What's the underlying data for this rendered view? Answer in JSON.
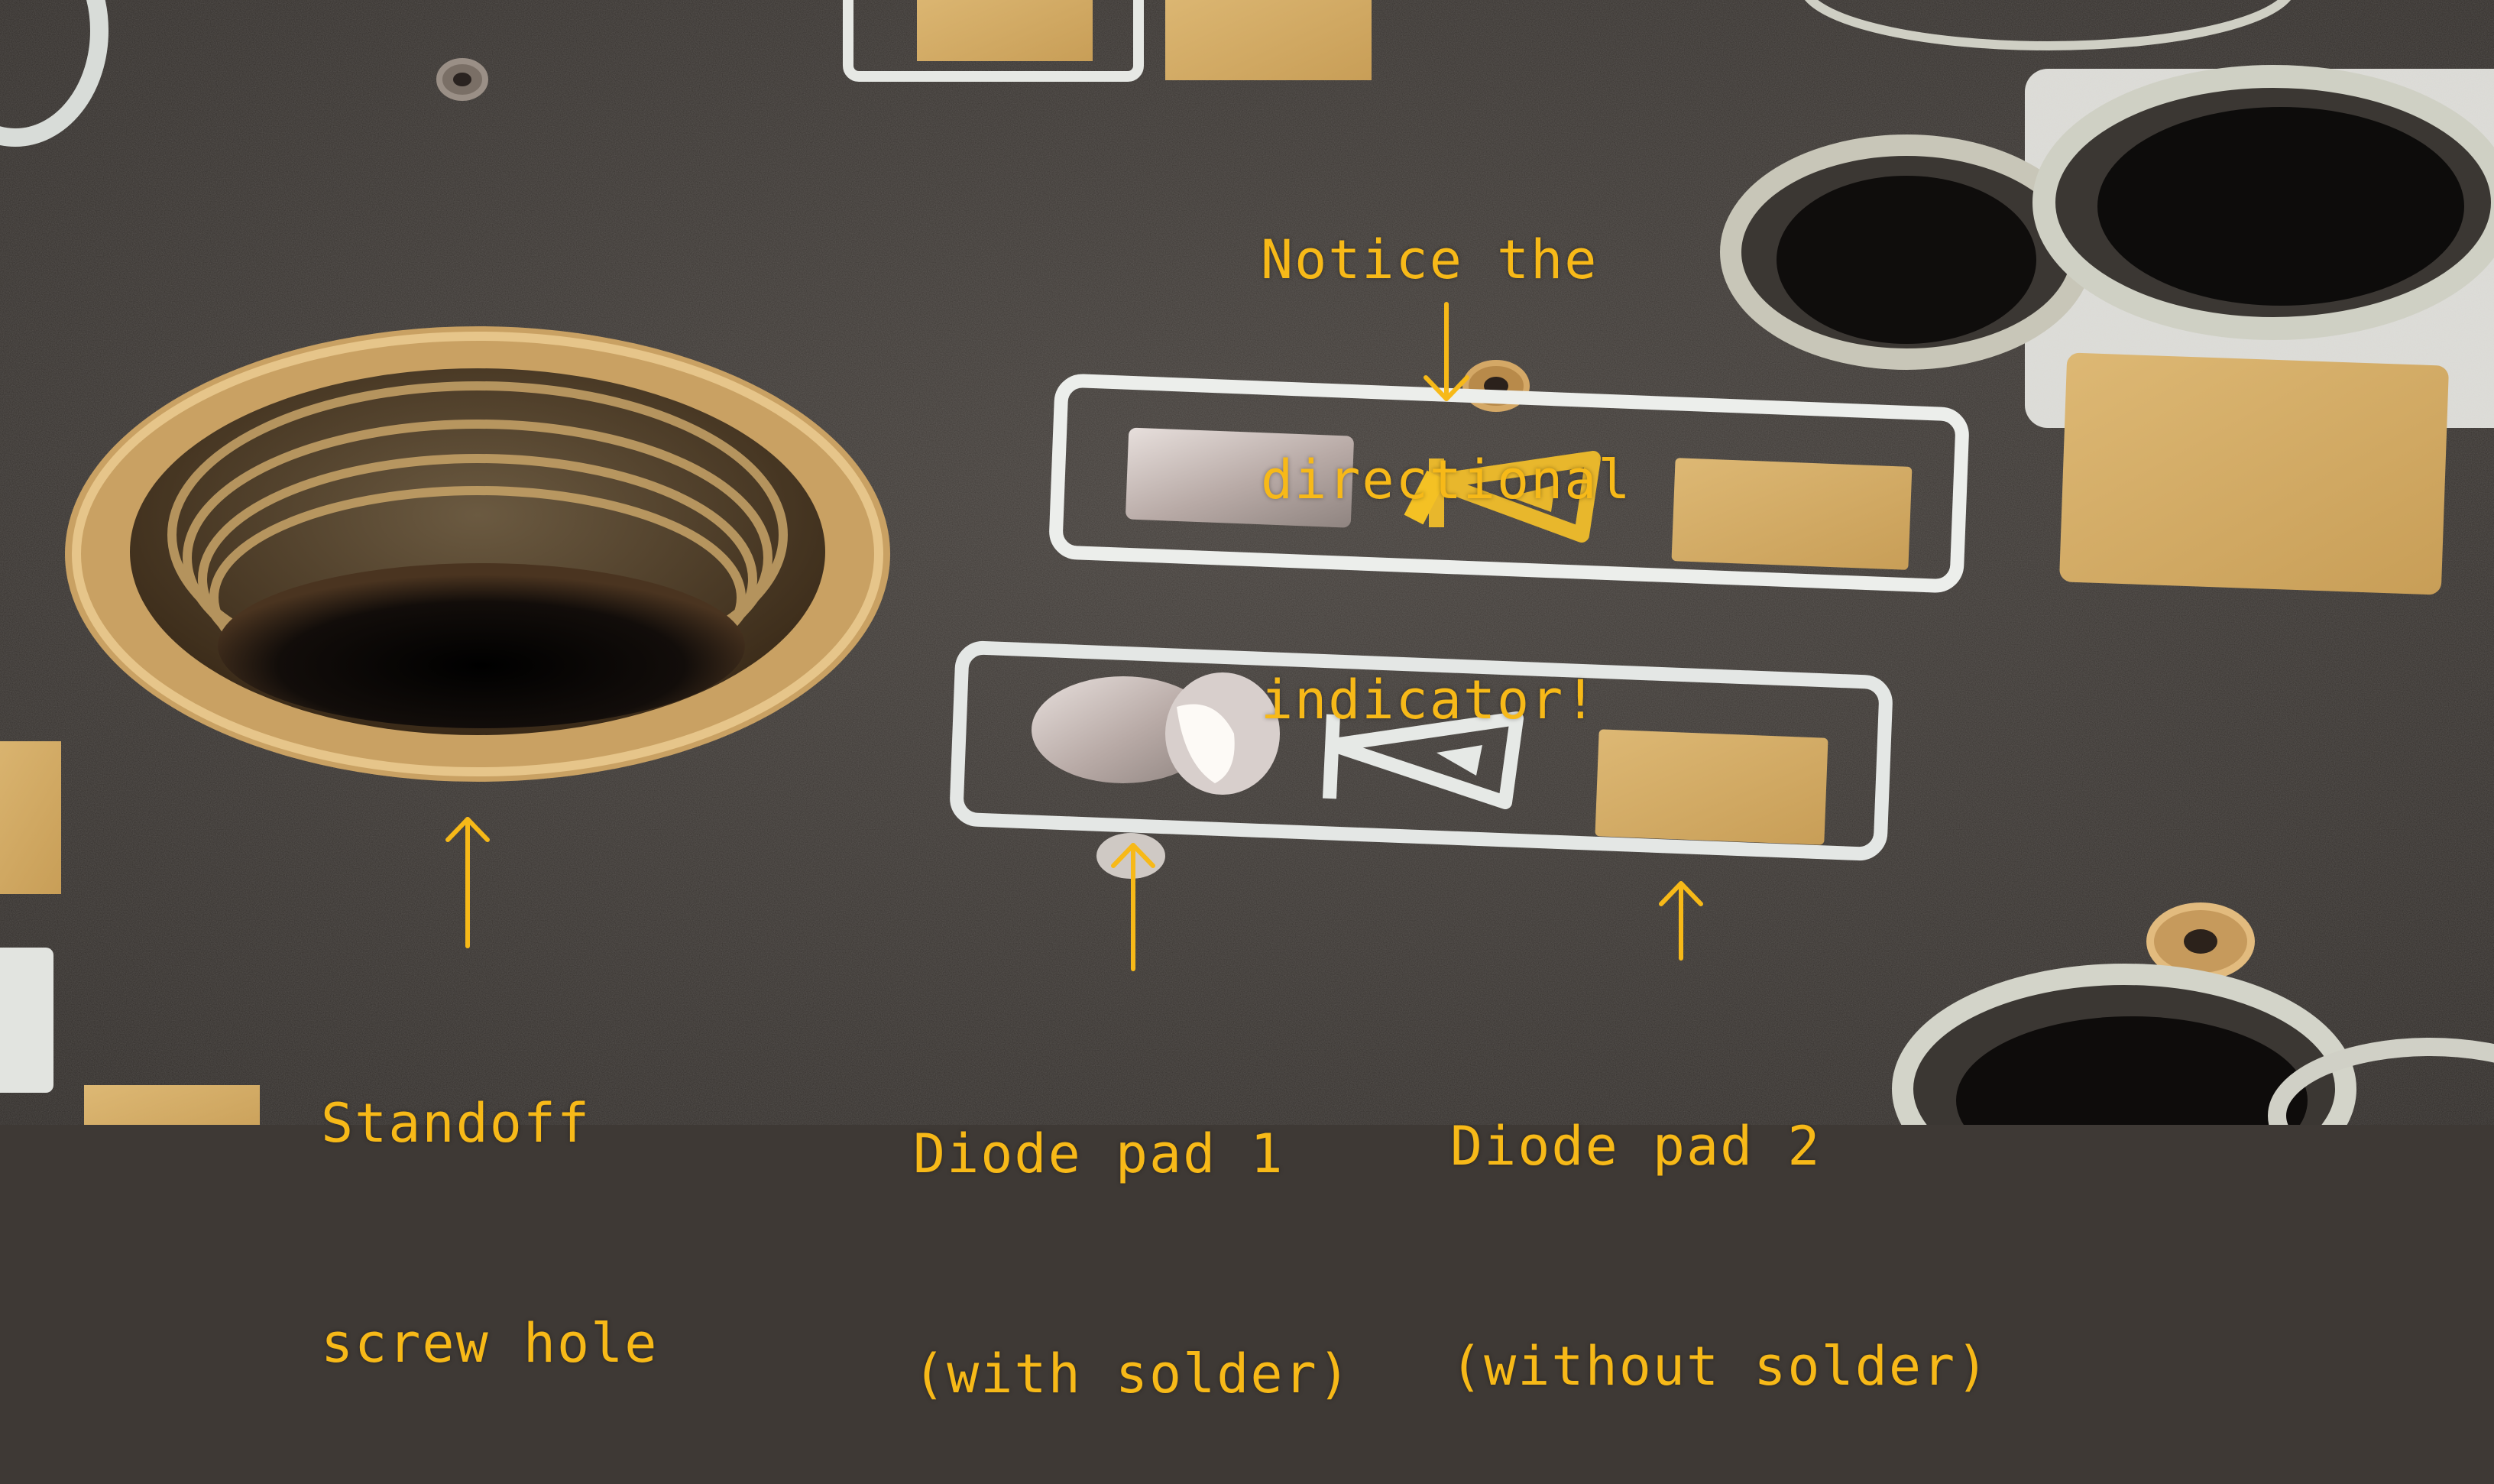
{
  "image": {
    "description_colors": {
      "board": "#3e3935",
      "silkscreen": "#e4e6e2",
      "gold": "#d8b56f",
      "annotation": "#f7b918"
    }
  },
  "annotations": {
    "notice": {
      "lines": [
        "Notice the",
        "directional",
        "indicator!"
      ]
    },
    "standoff": {
      "lines": [
        "Standoff",
        "screw hole"
      ]
    },
    "pad1": {
      "lines": [
        "Diode pad 1",
        "(with solder)"
      ]
    },
    "pad2": {
      "lines": [
        "Diode pad 2",
        "(without solder)"
      ]
    }
  }
}
